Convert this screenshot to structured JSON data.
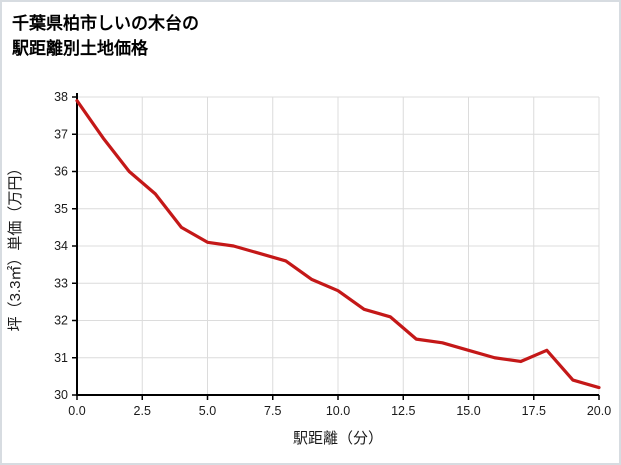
{
  "page": {
    "title_lines": [
      "千葉県柏市しいの木台の",
      "駅距離別土地価格"
    ]
  },
  "chart_data": {
    "type": "line",
    "title": "千葉県柏市しいの木台の駅距離別土地価格",
    "xlabel": "駅距離（分）",
    "ylabel": "坪（3.3㎡）単価（万円）",
    "x": [
      0,
      1,
      2,
      3,
      4,
      5,
      6,
      7,
      8,
      9,
      10,
      11,
      12,
      13,
      14,
      15,
      16,
      17,
      18,
      19,
      20
    ],
    "y": [
      37.9,
      36.9,
      36.0,
      35.4,
      34.5,
      34.1,
      34.0,
      33.8,
      33.6,
      33.1,
      32.8,
      32.3,
      32.1,
      31.5,
      31.4,
      31.2,
      31.0,
      30.9,
      31.2,
      30.4,
      30.2
    ],
    "xlim": [
      0,
      20
    ],
    "ylim": [
      30,
      38
    ],
    "xticks": [
      0,
      2.5,
      5,
      7.5,
      10,
      12.5,
      15,
      17.5,
      20
    ],
    "xtick_labels": [
      "0.0",
      "2.5",
      "5.0",
      "7.5",
      "10.0",
      "12.5",
      "15.0",
      "17.5",
      "20.0"
    ],
    "yticks": [
      30,
      31,
      32,
      33,
      34,
      35,
      36,
      37,
      38
    ],
    "ytick_labels": [
      "30",
      "31",
      "32",
      "33",
      "34",
      "35",
      "36",
      "37",
      "38"
    ],
    "grid": true,
    "legend_position": "none",
    "line_color": "#c41818",
    "grid_color": "#dcdcdc",
    "axis_color": "#000000"
  }
}
